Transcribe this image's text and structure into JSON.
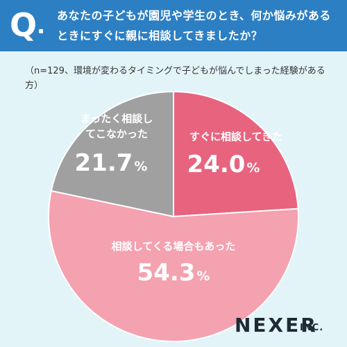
{
  "header": {
    "q_mark": "Q",
    "question": "あなたの子どもが園児や学生のとき、何か悩みがあるときにすぐに親に相談してきましたか？"
  },
  "note": "（n=129、環境が変わるタイミングで子どもが悩んでしまった経験がある方）",
  "brand": {
    "name": "NEXER",
    "suffix": "INC."
  },
  "colors": {
    "header_bg": "#2d7fc4",
    "background": "#e3f4f8",
    "slice_1": "#e8637e",
    "slice_2": "#f4a1b0",
    "slice_3": "#a0a0a0"
  },
  "chart_data": {
    "type": "pie",
    "title": "",
    "labels": [
      "すぐに相談してきた",
      "相談してくる場合もあった",
      "まったく相談してこなかった"
    ],
    "values": [
      24.0,
      54.3,
      21.7
    ],
    "value_text": [
      "24.0",
      "54.3",
      "21.7"
    ],
    "unit": "%",
    "start": "12 o'clock, clockwise"
  }
}
